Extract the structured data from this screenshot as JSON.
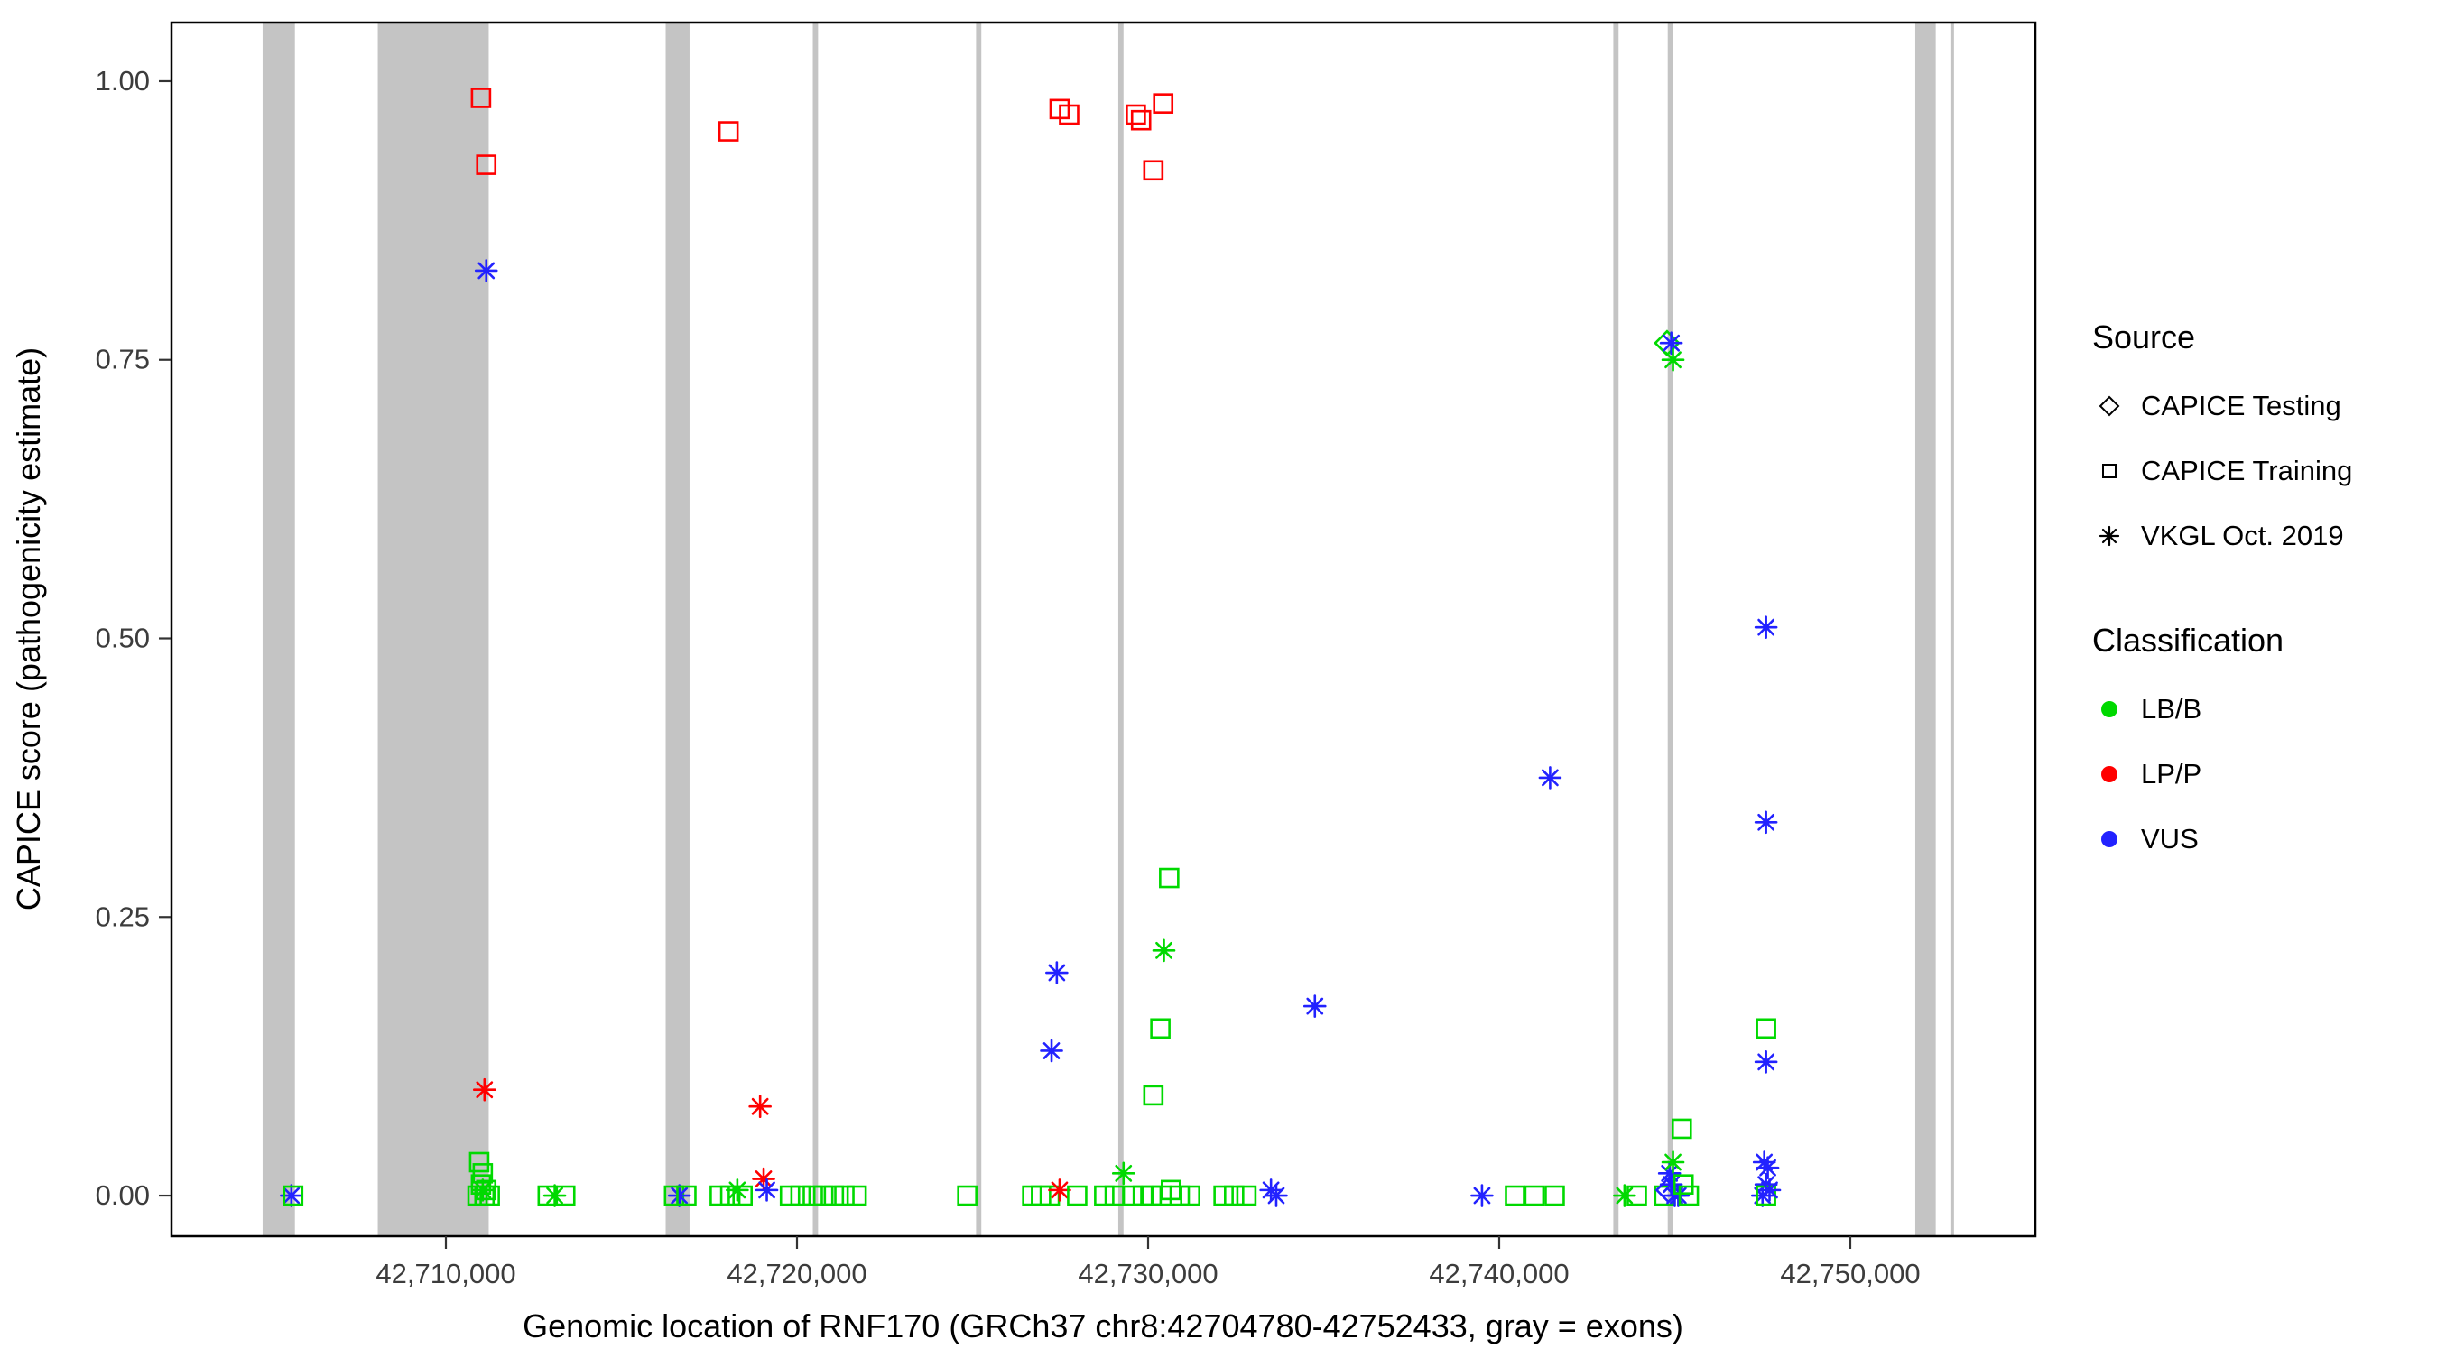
{
  "figure": {
    "background": "#FFFFFF",
    "panel_border": "#000000"
  },
  "axes": {
    "x_ticks": [
      {
        "value": 42710000,
        "label": "42,710,000"
      },
      {
        "value": 42720000,
        "label": "42,720,000"
      },
      {
        "value": 42730000,
        "label": "42,730,000"
      },
      {
        "value": 42740000,
        "label": "42,740,000"
      },
      {
        "value": 42750000,
        "label": "42,750,000"
      }
    ],
    "y_ticks": [
      {
        "value": 0.0,
        "label": "0.00"
      },
      {
        "value": 0.25,
        "label": "0.25"
      },
      {
        "value": 0.5,
        "label": "0.50"
      },
      {
        "value": 0.75,
        "label": "0.75"
      },
      {
        "value": 1.0,
        "label": "1.00"
      }
    ]
  },
  "legend": {
    "source": {
      "title": "Source",
      "items": [
        {
          "shape": "diamond",
          "label": "CAPICE Testing"
        },
        {
          "shape": "square",
          "label": "CAPICE Training"
        },
        {
          "shape": "asterisk",
          "label": "VKGL Oct. 2019"
        }
      ]
    },
    "classification": {
      "title": "Classification",
      "items": [
        {
          "color": "#00D900",
          "label": "LB/B"
        },
        {
          "color": "#FF0000",
          "label": "LP/P"
        },
        {
          "color": "#2222FF",
          "label": "VUS"
        }
      ]
    }
  },
  "chart_data": {
    "type": "scatter",
    "title": "",
    "xlabel": "Genomic location of RNF170 (GRCh37 chr8:42704780-42752433, gray = exons)",
    "ylabel": "CAPICE score (pathogenicity estimate)",
    "x_domain": [
      42702185,
      42755270
    ],
    "y_domain": [
      -0.0364,
      1.0526
    ],
    "gene": {
      "name": "RNF170",
      "assembly": "GRCh37",
      "chromosome": "chr8",
      "start": 42704780,
      "end": 42752433
    },
    "exon_color": "#C4C4C4",
    "exons": [
      [
        42704780,
        42705700
      ],
      [
        42708060,
        42711220
      ],
      [
        42716260,
        42716940
      ],
      [
        42720450,
        42720600
      ],
      [
        42725100,
        42725250
      ],
      [
        42729150,
        42729300
      ],
      [
        42743250,
        42743400
      ],
      [
        42744800,
        42744950
      ],
      [
        42751850,
        42752433
      ],
      [
        42752850,
        42752950
      ]
    ],
    "colors": {
      "LB/B": "#00D900",
      "LP/P": "#FF0000",
      "VUS": "#2222FF"
    },
    "shape_by_source": {
      "testing": "diamond",
      "training": "square",
      "vkgl": "asterisk"
    },
    "source_labels": {
      "testing": "CAPICE Testing",
      "training": "CAPICE Training",
      "vkgl": "VKGL Oct. 2019"
    },
    "point_fields": [
      "x",
      "y",
      "classification",
      "source"
    ],
    "points": [
      [
        42705600,
        0.0,
        "VUS",
        "vkgl"
      ],
      [
        42705650,
        0.0,
        "LB/B",
        "training"
      ],
      [
        42710900,
        0.0,
        "LB/B",
        "training"
      ],
      [
        42710950,
        0.03,
        "LB/B",
        "training"
      ],
      [
        42711000,
        0.985,
        "LP/P",
        "training"
      ],
      [
        42711000,
        0.01,
        "LB/B",
        "training"
      ],
      [
        42711050,
        0.02,
        "LB/B",
        "training"
      ],
      [
        42711050,
        0.005,
        "LB/B",
        "vkgl"
      ],
      [
        42711100,
        0.095,
        "LP/P",
        "vkgl"
      ],
      [
        42711100,
        0.0,
        "LB/B",
        "training"
      ],
      [
        42711150,
        0.925,
        "LP/P",
        "training"
      ],
      [
        42711150,
        0.83,
        "VUS",
        "vkgl"
      ],
      [
        42711150,
        0.005,
        "LB/B",
        "training"
      ],
      [
        42711250,
        0.0,
        "LB/B",
        "training"
      ],
      [
        42712900,
        0.0,
        "LB/B",
        "training"
      ],
      [
        42713100,
        0.0,
        "LB/B",
        "vkgl"
      ],
      [
        42713400,
        0.0,
        "LB/B",
        "training"
      ],
      [
        42716500,
        0.0,
        "LB/B",
        "training"
      ],
      [
        42716650,
        0.0,
        "VUS",
        "vkgl"
      ],
      [
        42716850,
        0.0,
        "LB/B",
        "training"
      ],
      [
        42717800,
        0.0,
        "LB/B",
        "training"
      ],
      [
        42718050,
        0.955,
        "LP/P",
        "training"
      ],
      [
        42718100,
        0.0,
        "LB/B",
        "training"
      ],
      [
        42718300,
        0.005,
        "LB/B",
        "vkgl"
      ],
      [
        42718450,
        0.0,
        "LB/B",
        "training"
      ],
      [
        42718950,
        0.08,
        "LP/P",
        "vkgl"
      ],
      [
        42719050,
        0.015,
        "LP/P",
        "vkgl"
      ],
      [
        42719140,
        0.005,
        "VUS",
        "vkgl"
      ],
      [
        42719800,
        0.0,
        "LB/B",
        "training"
      ],
      [
        42720100,
        0.0,
        "LB/B",
        "training"
      ],
      [
        42720450,
        0.0,
        "LB/B",
        "training"
      ],
      [
        42720750,
        0.0,
        "LB/B",
        "training"
      ],
      [
        42721050,
        0.0,
        "LB/B",
        "training"
      ],
      [
        42721350,
        0.0,
        "LB/B",
        "training"
      ],
      [
        42721700,
        0.0,
        "LB/B",
        "training"
      ],
      [
        42724850,
        0.0,
        "LB/B",
        "training"
      ],
      [
        42726700,
        0.0,
        "LB/B",
        "training"
      ],
      [
        42726950,
        0.0,
        "LB/B",
        "training"
      ],
      [
        42727200,
        0.0,
        "LB/B",
        "training"
      ],
      [
        42727250,
        0.13,
        "VUS",
        "vkgl"
      ],
      [
        42727400,
        0.2,
        "VUS",
        "vkgl"
      ],
      [
        42727480,
        0.975,
        "LP/P",
        "training"
      ],
      [
        42727480,
        0.005,
        "LP/P",
        "vkgl"
      ],
      [
        42727750,
        0.97,
        "LP/P",
        "training"
      ],
      [
        42727980,
        0.0,
        "LB/B",
        "training"
      ],
      [
        42728750,
        0.0,
        "LB/B",
        "training"
      ],
      [
        42729050,
        0.0,
        "LB/B",
        "training"
      ],
      [
        42729300,
        0.02,
        "LB/B",
        "vkgl"
      ],
      [
        42729550,
        0.0,
        "LB/B",
        "training"
      ],
      [
        42729650,
        0.97,
        "LP/P",
        "training"
      ],
      [
        42729800,
        0.965,
        "LP/P",
        "training"
      ],
      [
        42729850,
        0.0,
        "LB/B",
        "training"
      ],
      [
        42730100,
        0.0,
        "LB/B",
        "training"
      ],
      [
        42730150,
        0.92,
        "LP/P",
        "training"
      ],
      [
        42730150,
        0.09,
        "LB/B",
        "training"
      ],
      [
        42730350,
        0.15,
        "LB/B",
        "training"
      ],
      [
        42730400,
        0.0,
        "LB/B",
        "training"
      ],
      [
        42730430,
        0.98,
        "LP/P",
        "training"
      ],
      [
        42730450,
        0.22,
        "LB/B",
        "vkgl"
      ],
      [
        42730600,
        0.285,
        "LB/B",
        "training"
      ],
      [
        42730650,
        0.005,
        "LB/B",
        "training"
      ],
      [
        42730900,
        0.0,
        "LB/B",
        "training"
      ],
      [
        42731200,
        0.0,
        "LB/B",
        "training"
      ],
      [
        42732150,
        0.0,
        "LB/B",
        "training"
      ],
      [
        42732450,
        0.0,
        "LB/B",
        "training"
      ],
      [
        42732800,
        0.0,
        "LB/B",
        "training"
      ],
      [
        42733500,
        0.005,
        "VUS",
        "vkgl"
      ],
      [
        42733650,
        0.0,
        "VUS",
        "vkgl"
      ],
      [
        42734750,
        0.17,
        "VUS",
        "vkgl"
      ],
      [
        42739510,
        0.0,
        "VUS",
        "vkgl"
      ],
      [
        42740450,
        0.0,
        "LB/B",
        "training"
      ],
      [
        42741000,
        0.0,
        "LB/B",
        "training"
      ],
      [
        42741450,
        0.375,
        "VUS",
        "vkgl"
      ],
      [
        42741580,
        0.0,
        "LB/B",
        "training"
      ],
      [
        42743570,
        0.0,
        "LB/B",
        "vkgl"
      ],
      [
        42743920,
        0.0,
        "LB/B",
        "training"
      ],
      [
        42744700,
        0.0,
        "LB/B",
        "training"
      ],
      [
        42744780,
        0.765,
        "LB/B",
        "testing"
      ],
      [
        42744820,
        0.005,
        "VUS",
        "testing"
      ],
      [
        42744850,
        0.02,
        "VUS",
        "vkgl"
      ],
      [
        42744900,
        0.765,
        "VUS",
        "vkgl"
      ],
      [
        42744900,
        0.01,
        "VUS",
        "vkgl"
      ],
      [
        42744950,
        0.75,
        "LB/B",
        "vkgl"
      ],
      [
        42744950,
        0.03,
        "LB/B",
        "vkgl"
      ],
      [
        42745000,
        0.0,
        "VUS",
        "vkgl"
      ],
      [
        42745100,
        0.0,
        "VUS",
        "vkgl"
      ],
      [
        42745200,
        0.06,
        "LB/B",
        "training"
      ],
      [
        42745250,
        0.01,
        "LB/B",
        "training"
      ],
      [
        42745400,
        0.0,
        "LB/B",
        "training"
      ],
      [
        42747500,
        0.0,
        "VUS",
        "vkgl"
      ],
      [
        42747550,
        0.03,
        "VUS",
        "vkgl"
      ],
      [
        42747600,
        0.51,
        "VUS",
        "vkgl"
      ],
      [
        42747600,
        0.335,
        "VUS",
        "vkgl"
      ],
      [
        42747600,
        0.15,
        "LB/B",
        "training"
      ],
      [
        42747600,
        0.12,
        "VUS",
        "vkgl"
      ],
      [
        42747600,
        0.01,
        "VUS",
        "vkgl"
      ],
      [
        42747600,
        0.0,
        "LB/B",
        "training"
      ],
      [
        42747650,
        0.025,
        "VUS",
        "vkgl"
      ],
      [
        42747700,
        0.005,
        "VUS",
        "vkgl"
      ]
    ]
  }
}
